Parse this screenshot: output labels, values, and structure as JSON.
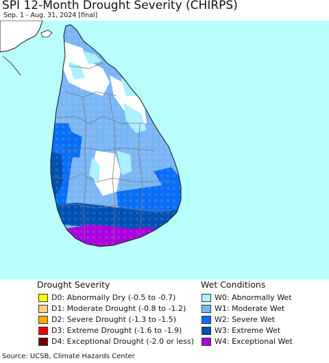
{
  "title": "SPI 12-Month Drought Severity (CHIRPS)",
  "subtitle": "Sep. 1 - Aug. 31, 2024 [final]",
  "colors": {
    "ocean": "#b9fffc",
    "land_other": "#ffffff",
    "border": "#7a7a7a",
    "coast": "#111111"
  },
  "legend": {
    "drought": {
      "heading": "Drought Severity",
      "items": [
        {
          "code": "D0",
          "label": "D0: Abnormally Dry (-0.5 to -0.7)",
          "color": "#ffff00"
        },
        {
          "code": "D1",
          "label": "D1: Moderate Drought (-0.8 to -1.2)",
          "color": "#fcd37f"
        },
        {
          "code": "D2",
          "label": "D2: Severe Drought (-1.3 to -1.5)",
          "color": "#ffaa00"
        },
        {
          "code": "D3",
          "label": "D3: Extreme Drought (-1.6 to -1.9)",
          "color": "#e60000"
        },
        {
          "code": "D4",
          "label": "D4: Exceptional Drought (-2.0 or less)",
          "color": "#730000"
        }
      ]
    },
    "wet": {
      "heading": "Wet Conditions",
      "items": [
        {
          "code": "W0",
          "label": "W0: Abnormally Wet",
          "color": "#aaf0ff"
        },
        {
          "code": "W1",
          "label": "W1: Moderate Wet",
          "color": "#7ab6f5"
        },
        {
          "code": "W2",
          "label": "W2: Severe Wet",
          "color": "#0a6ef5"
        },
        {
          "code": "W3",
          "label": "W3: Extreme Wet",
          "color": "#0050b4"
        },
        {
          "code": "W4",
          "label": "W4: Exceptional Wet",
          "color": "#aa00dc"
        }
      ]
    }
  },
  "source": "Source: UCSB, Climate Hazards Center"
}
